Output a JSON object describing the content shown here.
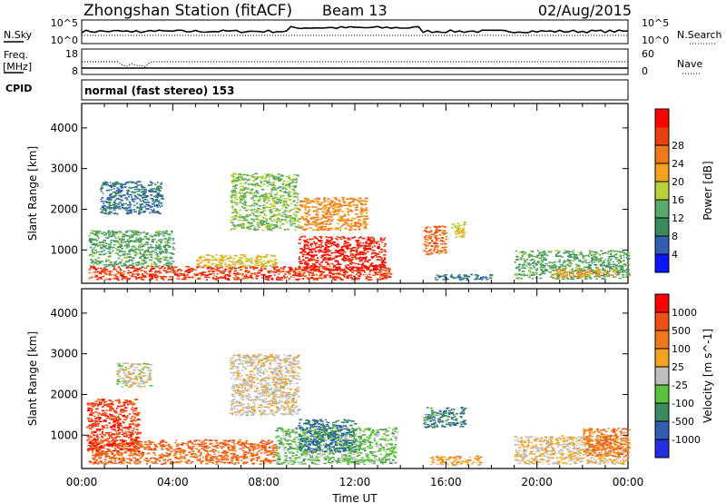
{
  "header": {
    "station": "Zhongshan Station (fitACF)",
    "beam": "Beam 13",
    "date": "02/Aug/2015"
  },
  "noise_panel": {
    "left_label": "N.Sky",
    "right_label": "N.Search",
    "left_ticks": [
      "10^5",
      "10^0"
    ],
    "right_ticks": [
      "10^5",
      "10^0"
    ]
  },
  "freq_panel": {
    "left_label": "Freq.",
    "left_unit": "[MHz]",
    "left_sub": "CPID",
    "right_label": "Nave",
    "left_ticks": [
      "18",
      "8"
    ],
    "right_ticks": [
      "60",
      "0"
    ]
  },
  "program": "normal (fast stereo) 153",
  "colors": {
    "power_scale": [
      "#0a14ff",
      "#2f5eb3",
      "#3a8a5e",
      "#5aa86a",
      "#b9d23a",
      "#f5a21e",
      "#f07818",
      "#e84010",
      "#ff0000"
    ],
    "velocity_scale": [
      "#2030e0",
      "#2f5eb3",
      "#3a8a5e",
      "#5cc23a",
      "#bebebe",
      "#f5a21e",
      "#f07818",
      "#f05018",
      "#ff0000"
    ]
  },
  "chart_data": [
    {
      "type": "heatmap",
      "title": "Power",
      "ylabel": "Slant Range [km]",
      "xlabel": "Time UT",
      "x_ticks": [
        "00:00",
        "04:00",
        "08:00",
        "12:00",
        "16:00",
        "20:00",
        "00:00"
      ],
      "y_ticks": [
        "1000",
        "2000",
        "3000",
        "4000"
      ],
      "ylim": [
        180,
        4600
      ],
      "xlim_hours": [
        0,
        24
      ],
      "colorbar": {
        "label": "Power",
        "unit": "[dB]",
        "ticks": [
          "4",
          "8",
          "12",
          "16",
          "20",
          "24",
          "28"
        ],
        "range": [
          0,
          32
        ]
      },
      "regions": [
        {
          "t": [
            0.3,
            13.6
          ],
          "r": [
            280,
            620
          ],
          "value": 27
        },
        {
          "t": [
            0.3,
            4.0
          ],
          "r": [
            600,
            1500
          ],
          "value": 12
        },
        {
          "t": [
            9.5,
            13.3
          ],
          "r": [
            500,
            1350
          ],
          "value": 29
        },
        {
          "t": [
            5.0,
            8.5
          ],
          "r": [
            600,
            900
          ],
          "value": 18
        },
        {
          "t": [
            0.8,
            3.5
          ],
          "r": [
            1900,
            2700
          ],
          "value": 7
        },
        {
          "t": [
            6.5,
            9.5
          ],
          "r": [
            1500,
            2900
          ],
          "value": 14
        },
        {
          "t": [
            9.5,
            12.5
          ],
          "r": [
            1500,
            2300
          ],
          "value": 22
        },
        {
          "t": [
            15.0,
            16.0
          ],
          "r": [
            900,
            1600
          ],
          "value": 24
        },
        {
          "t": [
            16.2,
            16.8
          ],
          "r": [
            1300,
            1700
          ],
          "value": 18
        },
        {
          "t": [
            15.5,
            18.0
          ],
          "r": [
            280,
            420
          ],
          "value": 8
        },
        {
          "t": [
            19.0,
            24.0
          ],
          "r": [
            300,
            1000
          ],
          "value": 12
        },
        {
          "t": [
            20.5,
            23.5
          ],
          "r": [
            350,
            550
          ],
          "value": 20
        }
      ]
    },
    {
      "type": "heatmap",
      "title": "Velocity",
      "ylabel": "Slant Range [km]",
      "xlabel": "Time UT",
      "x_ticks": [
        "00:00",
        "04:00",
        "08:00",
        "12:00",
        "16:00",
        "20:00",
        "00:00"
      ],
      "y_ticks": [
        "1000",
        "2000",
        "3000",
        "4000"
      ],
      "ylim": [
        180,
        4600
      ],
      "xlim_hours": [
        0,
        24
      ],
      "colorbar": {
        "label": "Velocity",
        "unit": "[m s^-1]",
        "ticks": [
          "1000",
          "500",
          "100",
          "25",
          "-25",
          "-100",
          "-500",
          "-1000"
        ],
        "range": [
          -1250,
          1250
        ]
      },
      "regions": [
        {
          "t": [
            0.3,
            8.5
          ],
          "r": [
            300,
            900
          ],
          "value": 700
        },
        {
          "t": [
            0.2,
            2.5
          ],
          "r": [
            600,
            1900
          ],
          "value": 900
        },
        {
          "t": [
            8.5,
            13.8
          ],
          "r": [
            300,
            1200
          ],
          "value": -250
        },
        {
          "t": [
            9.5,
            12.0
          ],
          "r": [
            600,
            1400
          ],
          "value": -700
        },
        {
          "t": [
            1.5,
            3.0
          ],
          "r": [
            2200,
            2800
          ],
          "value": 0
        },
        {
          "t": [
            6.5,
            9.5
          ],
          "r": [
            1500,
            3000
          ],
          "value": 80
        },
        {
          "t": [
            15.0,
            16.8
          ],
          "r": [
            1200,
            1700
          ],
          "value": -600
        },
        {
          "t": [
            15.3,
            17.5
          ],
          "r": [
            280,
            500
          ],
          "value": 300
        },
        {
          "t": [
            19.0,
            24.0
          ],
          "r": [
            300,
            1000
          ],
          "value": 150
        },
        {
          "t": [
            22.0,
            24.0
          ],
          "r": [
            500,
            1200
          ],
          "value": 600
        }
      ]
    }
  ]
}
